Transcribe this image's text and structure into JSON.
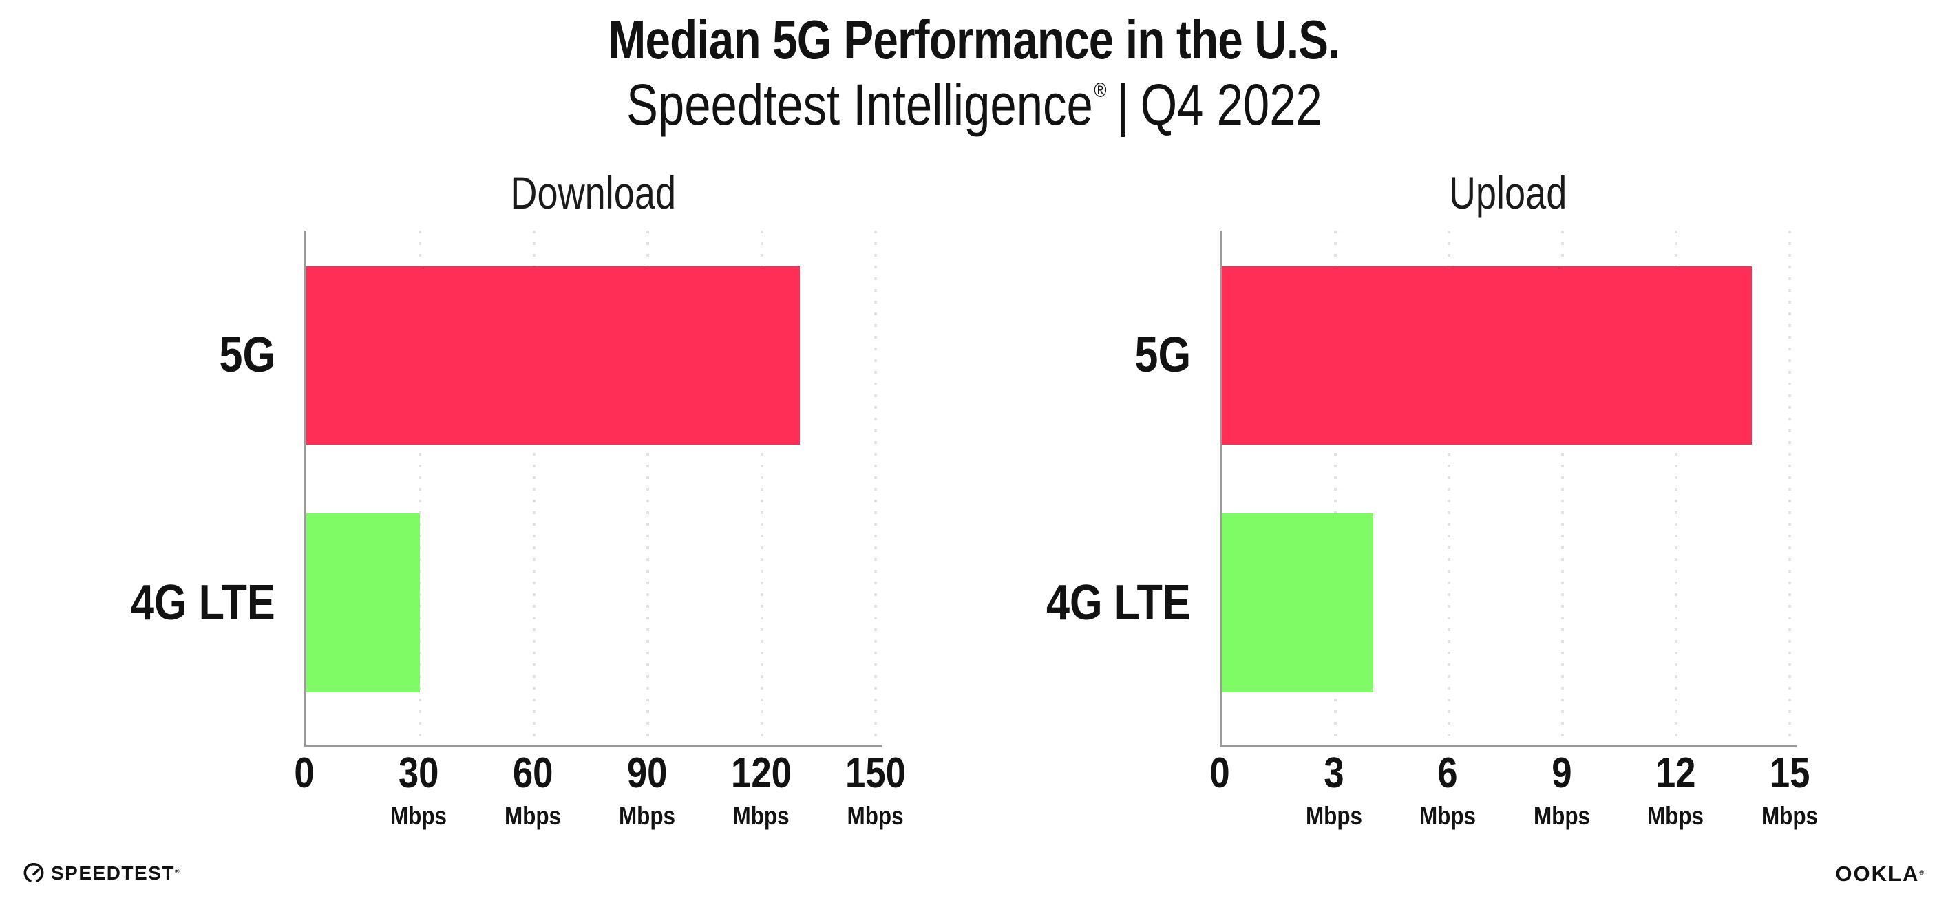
{
  "header": {
    "title": "Median 5G Performance in the U.S.",
    "subtitle": {
      "brand": "Speedtest Intelligence",
      "registered": "®",
      "divider": "|",
      "period": "Q4 2022"
    }
  },
  "chart_data": [
    {
      "type": "bar",
      "orientation": "horizontal",
      "title": "Download",
      "categories": [
        "5G",
        "4G LTE"
      ],
      "values": [
        130,
        30
      ],
      "unit": "Mbps",
      "xlim": [
        0,
        150
      ],
      "xticks": [
        0,
        30,
        60,
        90,
        120,
        150
      ],
      "bar_colors": [
        "#ff2e57",
        "#7ffb66"
      ],
      "grid": "vertical-dotted",
      "value_labels_shown": false
    },
    {
      "type": "bar",
      "orientation": "horizontal",
      "title": "Upload",
      "categories": [
        "5G",
        "4G LTE"
      ],
      "values": [
        14,
        4
      ],
      "unit": "Mbps",
      "xlim": [
        0,
        15
      ],
      "xticks": [
        0,
        3,
        6,
        9,
        12,
        15
      ],
      "bar_colors": [
        "#ff2e57",
        "#7ffb66"
      ],
      "grid": "vertical-dotted",
      "value_labels_shown": false
    }
  ],
  "footer": {
    "speedtest_wordmark": "SPEEDTEST",
    "speedtest_trademark": "®",
    "ookla_wordmark": "OOKLA",
    "ookla_trademark": "®"
  },
  "colors": {
    "bar_5g": "#ff2e57",
    "bar_4g_lte": "#7ffb66",
    "axis": "#9b9b9b",
    "gridline": "#e2e2ec",
    "text": "#121212",
    "background": "#ffffff"
  }
}
